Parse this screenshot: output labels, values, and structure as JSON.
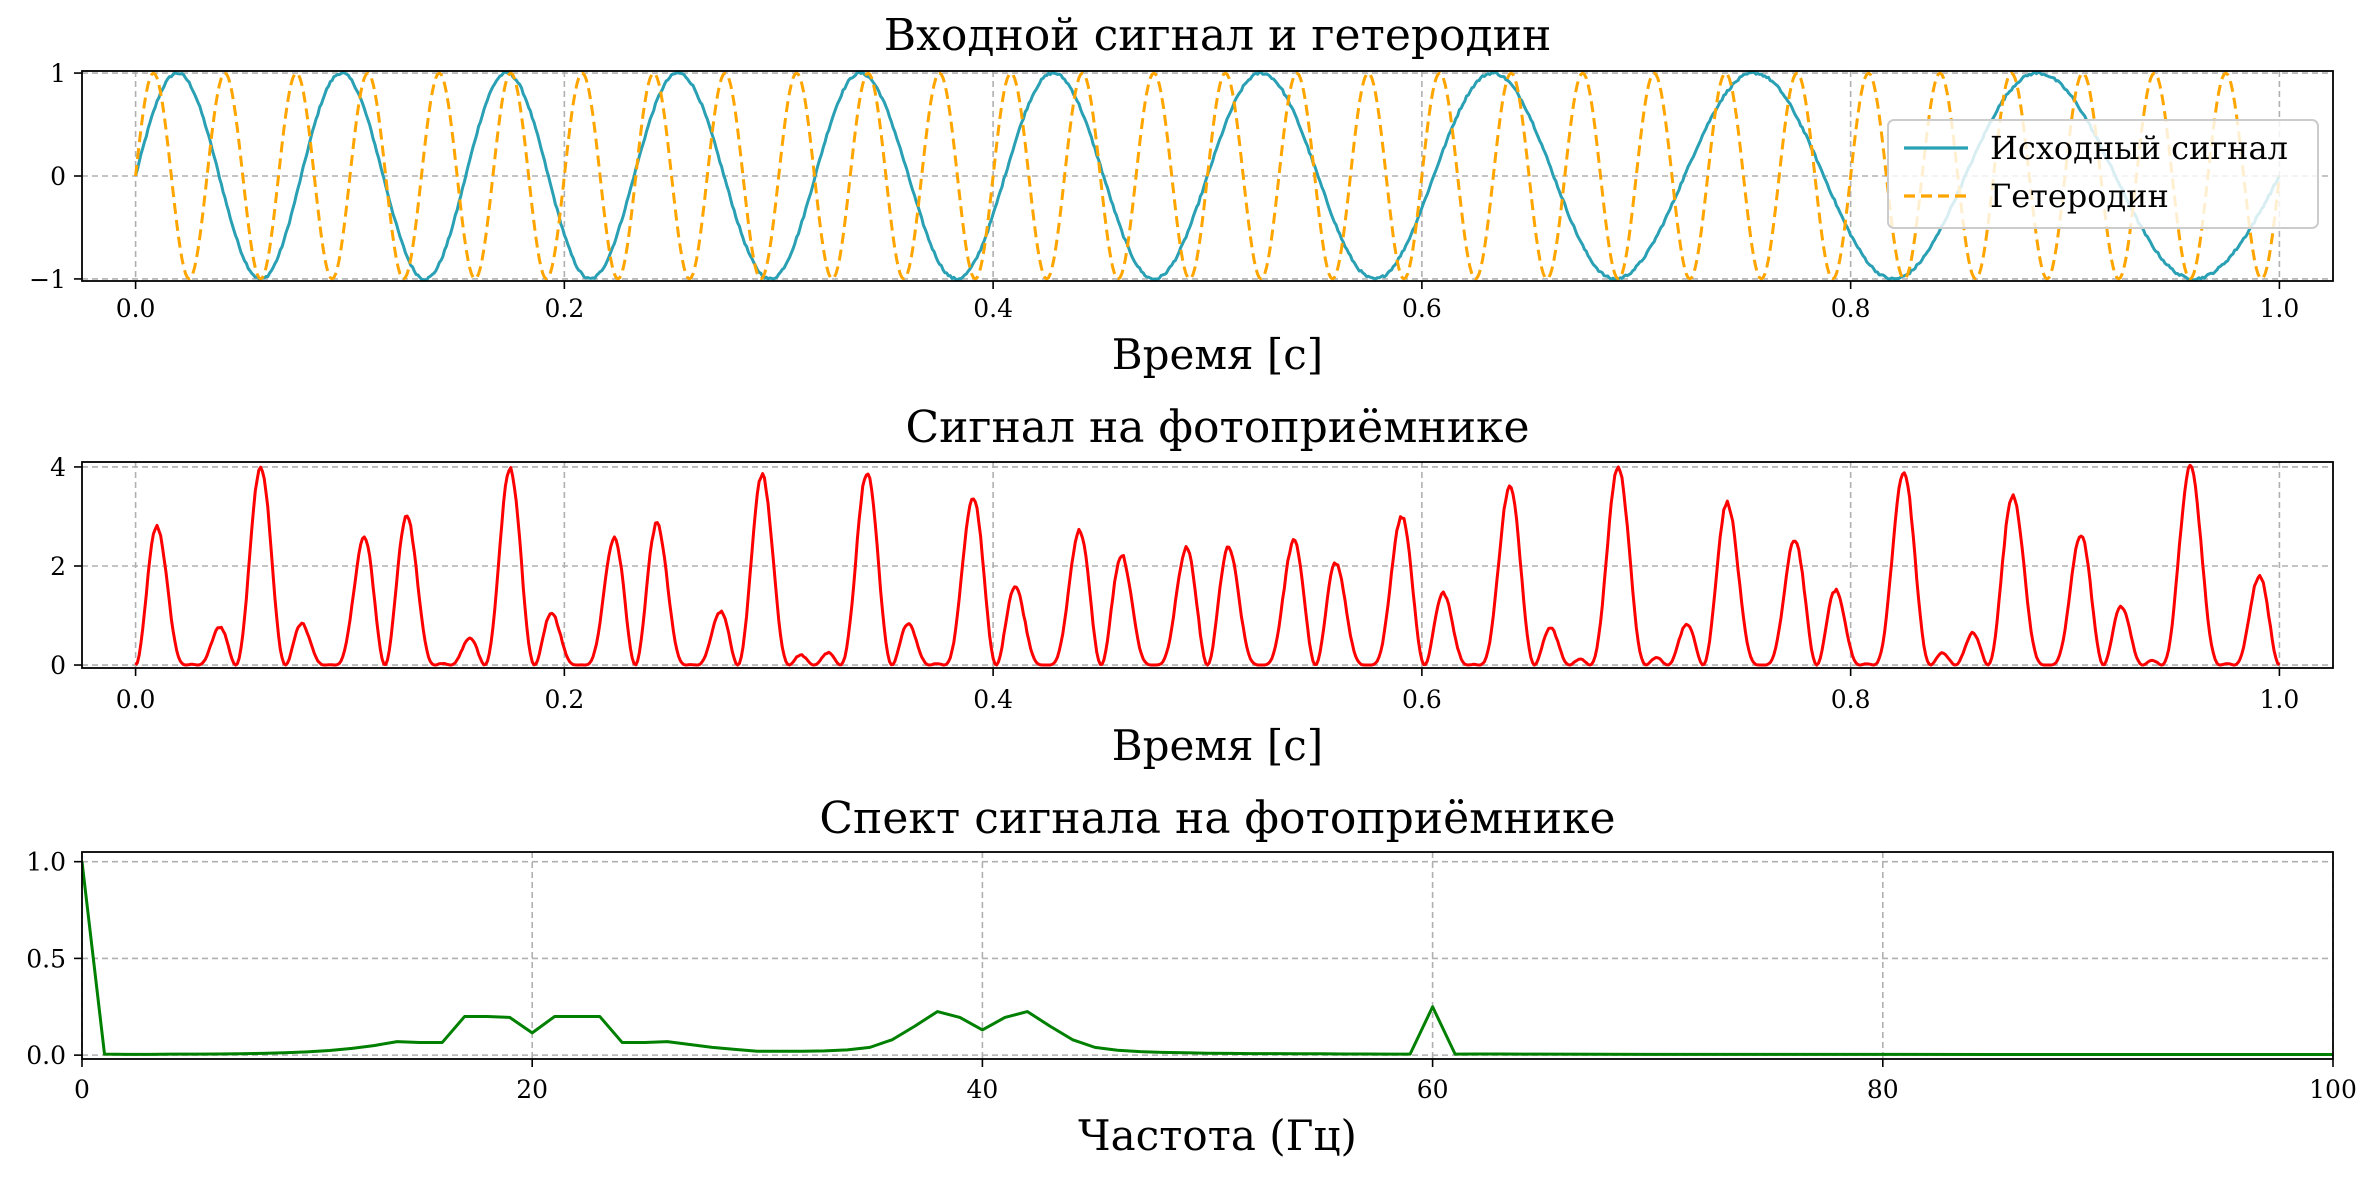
{
  "chart_data": [
    {
      "type": "line",
      "title": "Входной сигнал и гетеродин",
      "xlabel": "Время [с]",
      "ylabel": "",
      "xlim": [
        -0.025,
        1.025
      ],
      "ylim": [
        -1.02,
        1.02
      ],
      "xticks": [
        0.0,
        0.2,
        0.4,
        0.6,
        0.8,
        1.0
      ],
      "xtick_labels": [
        "0.0",
        "0.2",
        "0.4",
        "0.6",
        "0.8",
        "1.0"
      ],
      "yticks": [
        -1,
        0,
        1
      ],
      "ytick_labels": [
        "−1",
        "0",
        "1"
      ],
      "grid": true,
      "legend": "right",
      "series": [
        {
          "name": "Исходный сигнал",
          "color": "#2aa0b4",
          "style": "solid",
          "function": "sin(2*pi*phase(t)), chirp: instantaneous frequency ~12.8 Hz at t=0 falling to ~6.9 Hz at t=1",
          "sample_points": [
            [
              0.0,
              0.0
            ],
            [
              0.0195,
              1.0
            ],
            [
              0.0585,
              -1.0
            ],
            [
              0.096,
              1.0
            ],
            [
              0.135,
              -1.0
            ],
            [
              0.173,
              1.0
            ],
            [
              0.212,
              -1.0
            ],
            [
              0.253,
              1.0
            ],
            [
              0.296,
              -1.0
            ],
            [
              0.338,
              1.0
            ],
            [
              0.383,
              -1.0
            ],
            [
              0.428,
              1.0
            ],
            [
              0.475,
              -1.0
            ],
            [
              0.525,
              1.0
            ],
            [
              0.578,
              -1.0
            ],
            [
              0.633,
              1.0
            ],
            [
              0.69,
              -1.0
            ],
            [
              0.755,
              1.0
            ],
            [
              0.82,
              -1.0
            ],
            [
              0.887,
              1.0
            ],
            [
              0.96,
              -1.0
            ],
            [
              1.0,
              0.0
            ]
          ]
        },
        {
          "name": "Гетеродин",
          "color": "#ffa500",
          "style": "dashed",
          "function": "sin(2*pi*30*t)",
          "frequency_hz": 30
        }
      ]
    },
    {
      "type": "line",
      "title": "Сигнал на фотоприёмнике",
      "xlabel": "Время [с]",
      "ylabel": "",
      "xlim": [
        -0.025,
        1.025
      ],
      "ylim": [
        -0.06,
        4.1
      ],
      "xticks": [
        0.0,
        0.2,
        0.4,
        0.6,
        0.8,
        1.0
      ],
      "xtick_labels": [
        "0.0",
        "0.2",
        "0.4",
        "0.6",
        "0.8",
        "1.0"
      ],
      "yticks": [
        0,
        2,
        4
      ],
      "ytick_labels": [
        "0",
        "2",
        "4"
      ],
      "grid": true,
      "series": [
        {
          "color": "#ff0000",
          "style": "solid",
          "function": "(input + heterodyne)^2",
          "sample_points": [
            [
              0.009,
              2.95
            ],
            [
              0.058,
              3.95
            ],
            [
              0.108,
              2.4
            ],
            [
              0.125,
              3.2
            ],
            [
              0.174,
              3.95
            ],
            [
              0.222,
              2.65
            ],
            [
              0.244,
              2.8
            ],
            [
              0.292,
              3.95
            ],
            [
              0.341,
              3.85
            ],
            [
              0.392,
              3.1
            ],
            [
              0.442,
              2.6
            ],
            [
              0.459,
              2.4
            ],
            [
              0.492,
              2.4
            ],
            [
              0.509,
              2.5
            ],
            [
              0.542,
              2.45
            ],
            [
              0.558,
              2.2
            ],
            [
              0.592,
              2.9
            ],
            [
              0.641,
              3.55
            ],
            [
              0.691,
              4.0
            ],
            [
              0.742,
              3.25
            ],
            [
              0.774,
              2.5
            ],
            [
              0.825,
              3.95
            ],
            [
              0.875,
              3.15
            ],
            [
              0.906,
              3.0
            ],
            [
              0.959,
              3.9
            ],
            [
              0.99,
              1.8
            ]
          ]
        }
      ]
    },
    {
      "type": "line",
      "title": "Спект сигнала на фотоприёмнике",
      "xlabel": "Частота (Гц)",
      "ylabel": "",
      "xlim": [
        0,
        100
      ],
      "ylim": [
        -0.02,
        1.05
      ],
      "xticks": [
        0,
        20,
        40,
        60,
        80,
        100
      ],
      "xtick_labels": [
        "0",
        "20",
        "40",
        "60",
        "80",
        "100"
      ],
      "yticks": [
        0.0,
        0.5,
        1.0
      ],
      "ytick_labels": [
        "0.0",
        "0.5",
        "1.0"
      ],
      "grid": true,
      "series": [
        {
          "color": "#008000",
          "style": "solid",
          "x": [
            0,
            1,
            2,
            3,
            4,
            5,
            6,
            7,
            8,
            9,
            10,
            11,
            12,
            13,
            14,
            15,
            16,
            17,
            18,
            19,
            20,
            21,
            22,
            23,
            24,
            25,
            26,
            27,
            28,
            29,
            30,
            31,
            32,
            33,
            34,
            35,
            36,
            37,
            38,
            39,
            40,
            41,
            42,
            43,
            44,
            45,
            46,
            47,
            48,
            49,
            50,
            51,
            52,
            53,
            54,
            55,
            56,
            57,
            58,
            59,
            60,
            61,
            62,
            63,
            64,
            65,
            70,
            75,
            80,
            85,
            90,
            95,
            100
          ],
          "values": [
            1.0,
            0.005,
            0.004,
            0.004,
            0.005,
            0.005,
            0.006,
            0.007,
            0.009,
            0.012,
            0.017,
            0.024,
            0.035,
            0.05,
            0.07,
            0.065,
            0.065,
            0.2,
            0.2,
            0.195,
            0.115,
            0.2,
            0.2,
            0.2,
            0.065,
            0.065,
            0.07,
            0.055,
            0.04,
            0.03,
            0.02,
            0.02,
            0.02,
            0.022,
            0.027,
            0.04,
            0.08,
            0.15,
            0.225,
            0.195,
            0.13,
            0.195,
            0.225,
            0.15,
            0.08,
            0.04,
            0.025,
            0.018,
            0.014,
            0.012,
            0.01,
            0.009,
            0.008,
            0.008,
            0.007,
            0.007,
            0.006,
            0.006,
            0.005,
            0.005,
            0.25,
            0.005,
            0.006,
            0.006,
            0.005,
            0.005,
            0.004,
            0.004,
            0.004,
            0.003,
            0.003,
            0.003,
            0.003
          ]
        }
      ]
    }
  ]
}
